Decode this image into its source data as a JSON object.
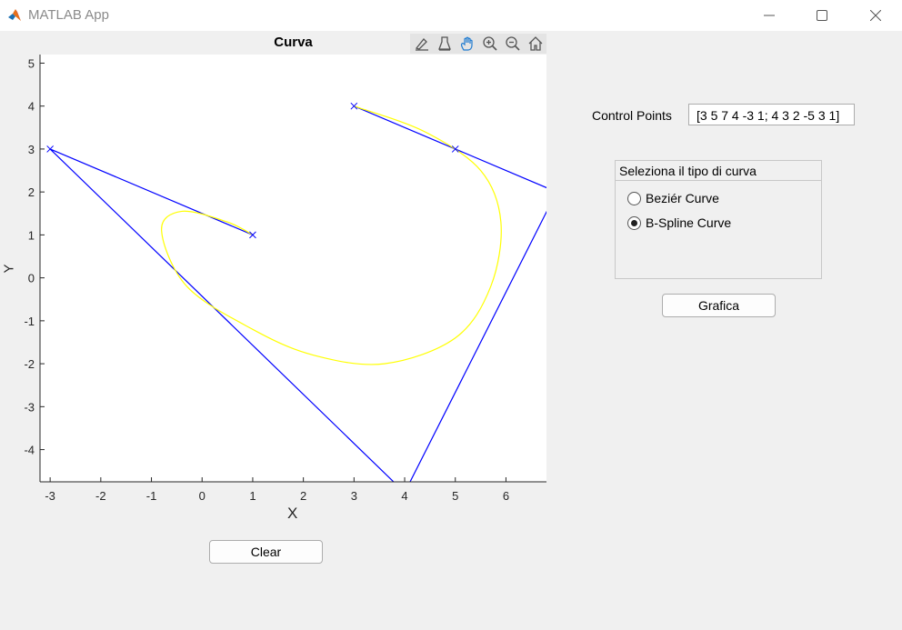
{
  "window": {
    "title": "MATLAB App",
    "app_icon": "matlab-logo-icon",
    "controls": [
      "minimize-icon",
      "maximize-icon",
      "close-icon"
    ]
  },
  "plot": {
    "title": "Curva",
    "toolbar": [
      "brush-icon",
      "data-tip-icon",
      "pan-hand-icon",
      "zoom-in-icon",
      "zoom-out-icon",
      "home-icon"
    ],
    "active_tool": "pan-hand-icon",
    "xlabel": "X",
    "ylabel": "Y",
    "xlim": [
      -3.2,
      6.8
    ],
    "ylim": [
      -4.75,
      5.2
    ],
    "xticks": [
      "-3",
      "-2",
      "-1",
      "0",
      "1",
      "2",
      "3",
      "4",
      "5",
      "6"
    ],
    "yticks": [
      "5",
      "4",
      "3",
      "2",
      "1",
      "0",
      "-1",
      "-2",
      "-3",
      "-4"
    ]
  },
  "chart_data": {
    "type": "line",
    "title": "Curva",
    "xlabel": "X",
    "ylabel": "Y",
    "xlim": [
      -3.2,
      6.8
    ],
    "ylim": [
      -4.75,
      5.2
    ],
    "grid": false,
    "control_points": {
      "x": [
        3,
        5,
        7,
        4,
        -3,
        1
      ],
      "y": [
        4,
        3,
        2,
        -5,
        3,
        1
      ]
    },
    "series": [
      {
        "style": "blue-polygon",
        "color": "#0000ff",
        "x": [
          3,
          5,
          7,
          4,
          -3,
          1
        ],
        "y": [
          4,
          3,
          2,
          -5,
          3,
          1
        ]
      },
      {
        "style": "yellow-curve",
        "color": "#ffff00",
        "x": [
          3,
          4.4,
          5.5,
          5.9,
          5.7,
          5.0,
          3.6,
          2.2,
          1.0,
          -0.3,
          -0.8,
          -0.4,
          0.5,
          1
        ],
        "y": [
          4,
          3.4,
          2.5,
          1.3,
          -0.2,
          -1.4,
          -2.0,
          -1.8,
          -1.2,
          -0.2,
          1.1,
          1.55,
          1.3,
          1
        ]
      }
    ]
  },
  "control_points": {
    "label": "Control Points",
    "value": "[3 5 7 4 -3 1; 4 3 2 -5 3 1]"
  },
  "curve_type": {
    "title": "Seleziona il tipo di curva",
    "options": [
      "Beziér Curve",
      "B-Spline Curve"
    ],
    "selected": "B-Spline Curve"
  },
  "buttons": {
    "grafica": "Grafica",
    "clear": "Clear"
  }
}
